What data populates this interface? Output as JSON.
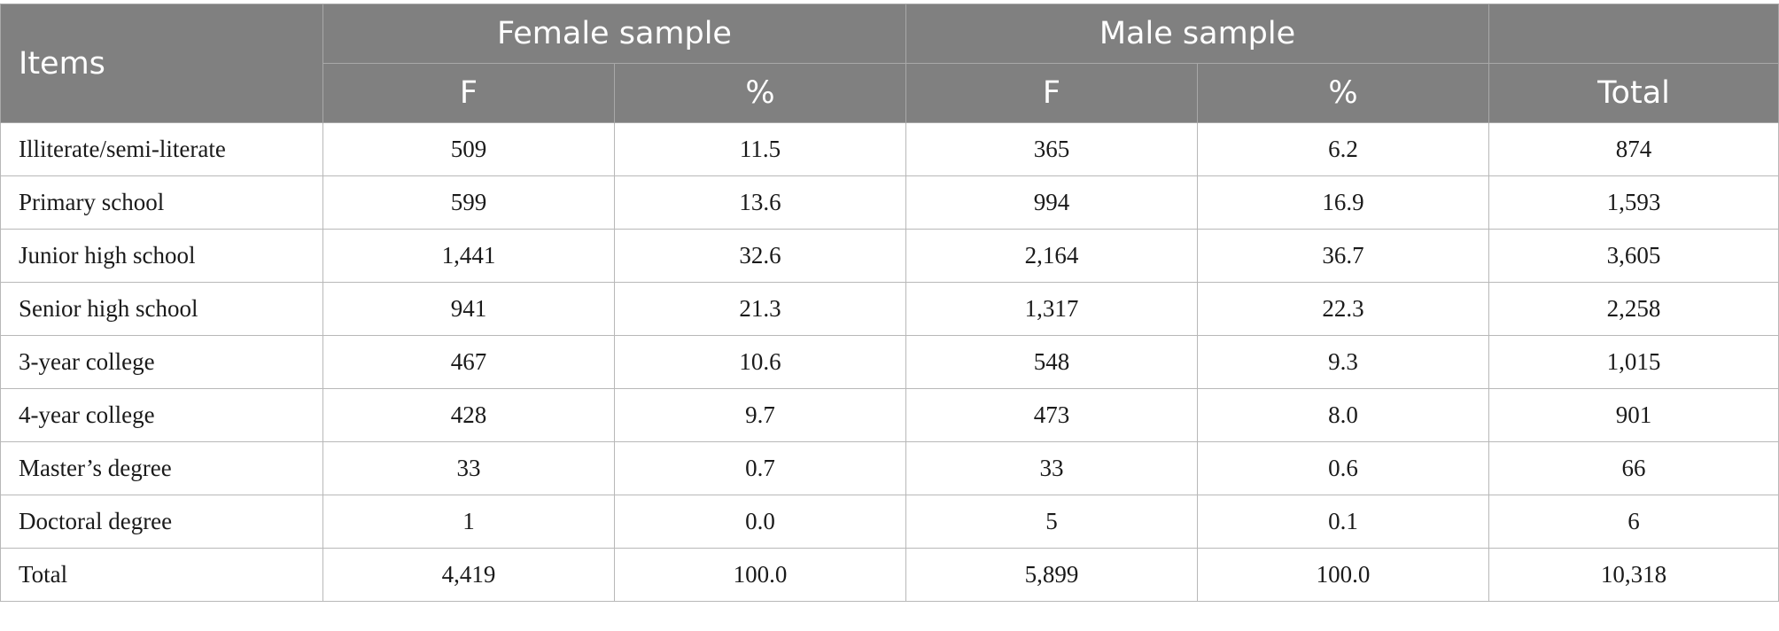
{
  "table": {
    "header": {
      "items": "Items",
      "female_group": "Female sample",
      "male_group": "Male sample",
      "female_f": "F",
      "female_pct": "%",
      "male_f": "F",
      "male_pct": "%",
      "total": "Total"
    },
    "rows": [
      {
        "label": "Illiterate/semi-literate",
        "female_f": "509",
        "female_pct": "11.5",
        "male_f": "365",
        "male_pct": "6.2",
        "total": "874"
      },
      {
        "label": "Primary school",
        "female_f": "599",
        "female_pct": "13.6",
        "male_f": "994",
        "male_pct": "16.9",
        "total": "1,593"
      },
      {
        "label": "Junior high school",
        "female_f": "1,441",
        "female_pct": "32.6",
        "male_f": "2,164",
        "male_pct": "36.7",
        "total": "3,605"
      },
      {
        "label": "Senior high school",
        "female_f": "941",
        "female_pct": "21.3",
        "male_f": "1,317",
        "male_pct": "22.3",
        "total": "2,258"
      },
      {
        "label": "3-year college",
        "female_f": "467",
        "female_pct": "10.6",
        "male_f": "548",
        "male_pct": "9.3",
        "total": "1,015"
      },
      {
        "label": "4-year college",
        "female_f": "428",
        "female_pct": "9.7",
        "male_f": "473",
        "male_pct": "8.0",
        "total": "901"
      },
      {
        "label": "Master’s degree",
        "female_f": "33",
        "female_pct": "0.7",
        "male_f": "33",
        "male_pct": "0.6",
        "total": "66"
      },
      {
        "label": "Doctoral degree",
        "female_f": "1",
        "female_pct": "0.0",
        "male_f": "5",
        "male_pct": "0.1",
        "total": "6"
      },
      {
        "label": "Total",
        "female_f": "4,419",
        "female_pct": "100.0",
        "male_f": "5,899",
        "male_pct": "100.0",
        "total": "10,318"
      }
    ]
  }
}
